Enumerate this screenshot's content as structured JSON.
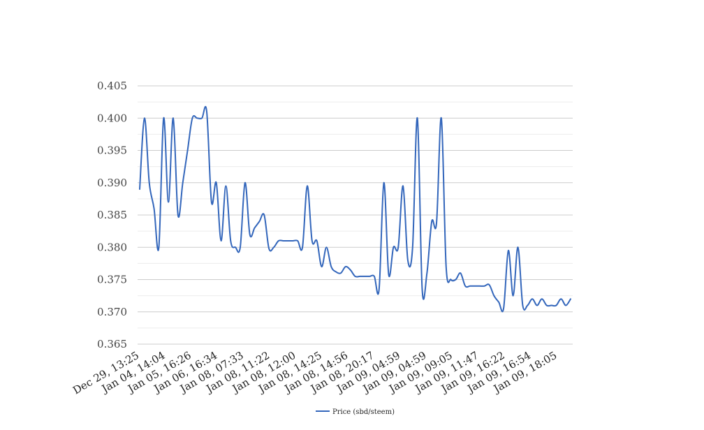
{
  "chart_data": {
    "type": "line",
    "title": "",
    "xlabel": "",
    "ylabel": "",
    "ylim": [
      0.365,
      0.405
    ],
    "yticks": [
      "0.365",
      "0.370",
      "0.375",
      "0.380",
      "0.385",
      "0.390",
      "0.395",
      "0.400",
      "0.405"
    ],
    "xtick_labels": [
      "Dec 29, 13:25",
      "Jan 04, 14:04",
      "Jan 05, 16:26",
      "Jan 06, 16:34",
      "Jan 08, 07:33",
      "Jan 08, 11:22",
      "Jan 08, 12:00",
      "Jan 08, 14:25",
      "Jan 08, 14:56",
      "Jan 08, 20:17",
      "Jan 09, 04:59",
      "Jan 09, 04:59",
      "Jan 09, 09:05",
      "Jan 09, 11:47",
      "Jan 09, 16:22",
      "Jan 09, 16:54",
      "Jan 09, 18:05"
    ],
    "grid": true,
    "legend_position": "bottom",
    "series": [
      {
        "name": "Price (sbd/steem)",
        "color": "#3366bb",
        "values": [
          0.389,
          0.4,
          0.39,
          0.386,
          0.38,
          0.4,
          0.387,
          0.4,
          0.385,
          0.39,
          0.395,
          0.4,
          0.4,
          0.4,
          0.401,
          0.387,
          0.39,
          0.381,
          0.3895,
          0.381,
          0.38,
          0.38,
          0.39,
          0.382,
          0.383,
          0.384,
          0.385,
          0.3798,
          0.38,
          0.381,
          0.381,
          0.381,
          0.381,
          0.381,
          0.38,
          0.3895,
          0.381,
          0.381,
          0.377,
          0.38,
          0.377,
          0.3762,
          0.376,
          0.377,
          0.3765,
          0.3755,
          0.3755,
          0.3755,
          0.3755,
          0.3755,
          0.3735,
          0.39,
          0.3758,
          0.38,
          0.38,
          0.3895,
          0.378,
          0.38,
          0.4,
          0.3735,
          0.376,
          0.384,
          0.3838,
          0.4,
          0.377,
          0.375,
          0.375,
          0.376,
          0.374,
          0.374,
          0.374,
          0.374,
          0.374,
          0.3742,
          0.3725,
          0.3715,
          0.3705,
          0.3795,
          0.3725,
          0.38,
          0.371,
          0.371,
          0.372,
          0.371,
          0.372,
          0.371,
          0.371,
          0.371,
          0.372,
          0.371,
          0.372
        ]
      }
    ]
  }
}
